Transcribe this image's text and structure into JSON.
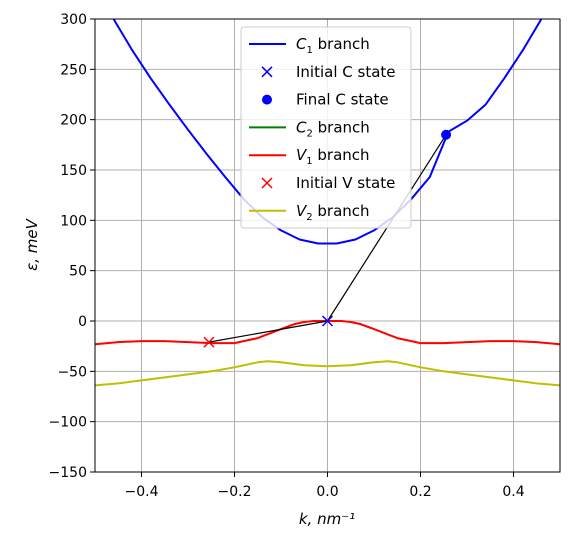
{
  "chart_data": {
    "type": "line",
    "title": "",
    "xlabel": "k, nm⁻¹",
    "ylabel": "ε, meV",
    "xlim": [
      -0.5,
      0.5
    ],
    "ylim": [
      -150,
      300
    ],
    "xticks": [
      -0.4,
      -0.2,
      0.0,
      0.2,
      0.4
    ],
    "xtick_labels": [
      "−0.4",
      "−0.2",
      "0.0",
      "0.2",
      "0.4"
    ],
    "yticks": [
      -150,
      -100,
      -50,
      0,
      50,
      100,
      150,
      200,
      250,
      300
    ],
    "ytick_labels": [
      "−150",
      "−100",
      "−50",
      "0",
      "50",
      "100",
      "150",
      "200",
      "250",
      "300"
    ],
    "grid": true,
    "legend_position": "top-center",
    "series": [
      {
        "name": "C₁ branch",
        "color": "#0000ff",
        "style": "line",
        "x": [
          -0.5,
          -0.46,
          -0.42,
          -0.38,
          -0.34,
          -0.3,
          -0.26,
          -0.22,
          -0.18,
          -0.14,
          -0.1,
          -0.06,
          -0.02,
          0.0,
          0.02,
          0.06,
          0.1,
          0.14,
          0.18,
          0.22,
          0.26,
          0.3,
          0.34,
          0.38,
          0.42,
          0.46,
          0.5
        ],
        "y": [
          345,
          300,
          269,
          241,
          215,
          190,
          166,
          143,
          121,
          103,
          90,
          81,
          77,
          77,
          77,
          81,
          90,
          103,
          121,
          143,
          188,
          199,
          215,
          241,
          269,
          300,
          345
        ]
      },
      {
        "name": "Initial C state",
        "color": "#0000ff",
        "style": "x-marker",
        "x": [
          0.0
        ],
        "y": [
          0
        ]
      },
      {
        "name": "Final C state",
        "color": "#0000ff",
        "style": "dot-marker",
        "x": [
          0.255
        ],
        "y": [
          185
        ]
      },
      {
        "name": "C₂ branch",
        "color": "#008000",
        "style": "line",
        "x": [],
        "y": []
      },
      {
        "name": "V₁ branch",
        "color": "#ff0000",
        "style": "line",
        "x": [
          -0.5,
          -0.45,
          -0.4,
          -0.35,
          -0.3,
          -0.25,
          -0.2,
          -0.15,
          -0.1,
          -0.07,
          -0.05,
          -0.03,
          0.0,
          0.03,
          0.05,
          0.07,
          0.1,
          0.15,
          0.2,
          0.25,
          0.3,
          0.35,
          0.4,
          0.45,
          0.5
        ],
        "y": [
          -23,
          -21,
          -20,
          -20,
          -21,
          -22,
          -22,
          -17,
          -8,
          -3,
          -1,
          0,
          0,
          0,
          -1,
          -3,
          -8,
          -17,
          -22,
          -22,
          -21,
          -20,
          -20,
          -21,
          -23
        ]
      },
      {
        "name": "Initial V state",
        "color": "#ff0000",
        "style": "x-marker",
        "x": [
          -0.255
        ],
        "y": [
          -21
        ]
      },
      {
        "name": "V₂ branch",
        "color": "#bfbf00",
        "style": "line",
        "x": [
          -0.5,
          -0.45,
          -0.4,
          -0.35,
          -0.3,
          -0.25,
          -0.2,
          -0.15,
          -0.13,
          -0.1,
          -0.05,
          0.0,
          0.05,
          0.1,
          0.13,
          0.15,
          0.2,
          0.25,
          0.3,
          0.35,
          0.4,
          0.45,
          0.5
        ],
        "y": [
          -64,
          -62,
          -59,
          -56,
          -53,
          -50,
          -46,
          -41,
          -40,
          -41,
          -44,
          -45,
          -44,
          -41,
          -40,
          -41,
          -46,
          -50,
          -53,
          -56,
          -59,
          -62,
          -64
        ]
      }
    ],
    "transitions": [
      {
        "color": "#000000",
        "x": [
          0.0,
          0.255
        ],
        "y": [
          0,
          185
        ]
      },
      {
        "color": "#000000",
        "x": [
          -0.255,
          0.0
        ],
        "y": [
          -21,
          0
        ]
      }
    ],
    "legend": {
      "entries": [
        {
          "label_main": "C",
          "label_sub": "1",
          "label_rest": " branch",
          "color": "#0000ff",
          "marker": "line"
        },
        {
          "label_main": "Initial C state",
          "label_sub": "",
          "label_rest": "",
          "color": "#0000ff",
          "marker": "x"
        },
        {
          "label_main": "Final C state",
          "label_sub": "",
          "label_rest": "",
          "color": "#0000ff",
          "marker": "dot"
        },
        {
          "label_main": "C",
          "label_sub": "2",
          "label_rest": " branch",
          "color": "#008000",
          "marker": "line"
        },
        {
          "label_main": "V",
          "label_sub": "1",
          "label_rest": " branch",
          "color": "#ff0000",
          "marker": "line"
        },
        {
          "label_main": "Initial V state",
          "label_sub": "",
          "label_rest": "",
          "color": "#ff0000",
          "marker": "x"
        },
        {
          "label_main": "V",
          "label_sub": "2",
          "label_rest": " branch",
          "color": "#bfbf00",
          "marker": "line"
        }
      ]
    }
  }
}
